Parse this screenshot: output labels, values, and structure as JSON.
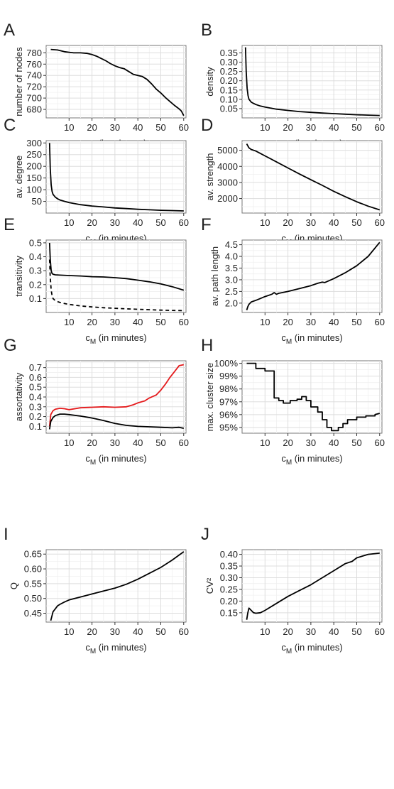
{
  "chart_data": [
    {
      "panel": "A",
      "type": "line",
      "xlabel_main": "c",
      "xlabel_sub": "M",
      "xlabel_rest": " (in minutes)",
      "ylabel": "number of nodes",
      "xlim": [
        0,
        61
      ],
      "ylim": [
        665,
        793
      ],
      "xticks": [
        10,
        20,
        30,
        40,
        50,
        60
      ],
      "yticks": [
        680,
        700,
        720,
        740,
        760,
        780
      ],
      "ytick_labels": [
        "680",
        "700",
        "720",
        "740",
        "760",
        "780"
      ],
      "series": [
        {
          "color": "#000000",
          "dash": "none",
          "x": [
            2,
            5,
            8,
            10,
            12,
            15,
            18,
            20,
            22,
            24,
            26,
            28,
            30,
            32,
            34,
            36,
            38,
            40,
            42,
            44,
            46,
            48,
            50,
            52,
            54,
            56,
            58,
            59,
            60
          ],
          "y": [
            786,
            785,
            782,
            781,
            780,
            780,
            779,
            777,
            774,
            770,
            766,
            761,
            757,
            754,
            752,
            747,
            742,
            740,
            738,
            733,
            725,
            716,
            709,
            701,
            694,
            687,
            681,
            677,
            669
          ]
        }
      ]
    },
    {
      "panel": "B",
      "type": "line",
      "xlabel_main": "c",
      "xlabel_sub": "M",
      "xlabel_rest": " (in minutes)",
      "ylabel": "density",
      "xlim": [
        0,
        61
      ],
      "ylim": [
        0,
        0.39
      ],
      "xticks": [
        10,
        20,
        30,
        40,
        50,
        60
      ],
      "yticks": [
        0.05,
        0.1,
        0.15,
        0.2,
        0.25,
        0.3,
        0.35
      ],
      "ytick_labels": [
        "0.05",
        "0.10",
        "0.15",
        "0.20",
        "0.25",
        "0.30",
        "0.35"
      ],
      "series": [
        {
          "color": "#000000",
          "dash": "none",
          "x": [
            1.5,
            1.8,
            2.2,
            2.6,
            3,
            4,
            5,
            6,
            8,
            10,
            15,
            20,
            25,
            30,
            35,
            40,
            45,
            50,
            55,
            60
          ],
          "y": [
            0.38,
            0.25,
            0.16,
            0.12,
            0.1,
            0.085,
            0.078,
            0.072,
            0.064,
            0.058,
            0.047,
            0.04,
            0.034,
            0.03,
            0.026,
            0.023,
            0.02,
            0.017,
            0.015,
            0.013
          ]
        }
      ]
    },
    {
      "panel": "C",
      "type": "line",
      "xlabel_main": "c",
      "xlabel_sub": "M",
      "xlabel_rest": " (in minutes)",
      "ylabel": "av. degree",
      "xlim": [
        0,
        61
      ],
      "ylim": [
        0,
        310
      ],
      "xticks": [
        10,
        20,
        30,
        40,
        50,
        60
      ],
      "yticks": [
        50,
        100,
        150,
        200,
        250,
        300
      ],
      "ytick_labels": [
        "50",
        "100",
        "150",
        "200",
        "250",
        "300"
      ],
      "series": [
        {
          "color": "#000000",
          "dash": "none",
          "x": [
            1.5,
            1.8,
            2.2,
            2.6,
            3,
            4,
            5,
            6,
            8,
            10,
            15,
            20,
            25,
            30,
            35,
            40,
            45,
            50,
            55,
            60
          ],
          "y": [
            300,
            190,
            120,
            92,
            80,
            68,
            61,
            56,
            50,
            45,
            36,
            30,
            26,
            22,
            19,
            16,
            14,
            12,
            10.5,
            9
          ]
        }
      ]
    },
    {
      "panel": "D",
      "type": "line",
      "xlabel_main": "c",
      "xlabel_sub": "M",
      "xlabel_rest": " (in minutes)",
      "ylabel": "av. strength",
      "xlim": [
        0,
        61
      ],
      "ylim": [
        1100,
        5600
      ],
      "xticks": [
        10,
        20,
        30,
        40,
        50,
        60
      ],
      "yticks": [
        2000,
        3000,
        4000,
        5000
      ],
      "ytick_labels": [
        "2000",
        "3000",
        "4000",
        "5000"
      ],
      "series": [
        {
          "color": "#000000",
          "dash": "none",
          "x": [
            2,
            3,
            4,
            6,
            8,
            10,
            15,
            20,
            25,
            30,
            35,
            40,
            45,
            50,
            55,
            60
          ],
          "y": [
            5400,
            5150,
            5050,
            4950,
            4800,
            4650,
            4280,
            3900,
            3530,
            3170,
            2820,
            2450,
            2120,
            1800,
            1530,
            1300
          ]
        }
      ]
    },
    {
      "panel": "E",
      "type": "line",
      "xlabel_main": "c",
      "xlabel_sub": "M",
      "xlabel_rest": " (in minutes)",
      "ylabel": "transitivity",
      "xlim": [
        0,
        61
      ],
      "ylim": [
        0.0,
        0.52
      ],
      "xticks": [
        10,
        20,
        30,
        40,
        50,
        60
      ],
      "yticks": [
        0.1,
        0.2,
        0.3,
        0.4,
        0.5
      ],
      "ytick_labels": [
        "0.1",
        "0.2",
        "0.3",
        "0.4",
        "0.5"
      ],
      "series": [
        {
          "color": "#000000",
          "dash": "none",
          "x": [
            1.5,
            1.8,
            2.2,
            2.6,
            3,
            4,
            6,
            10,
            15,
            20,
            25,
            30,
            35,
            40,
            45,
            50,
            55,
            60
          ],
          "y": [
            0.5,
            0.38,
            0.3,
            0.28,
            0.275,
            0.27,
            0.268,
            0.265,
            0.262,
            0.257,
            0.255,
            0.25,
            0.243,
            0.232,
            0.22,
            0.205,
            0.185,
            0.16
          ]
        },
        {
          "color": "#000000",
          "dash": "5,4",
          "x": [
            1.5,
            1.8,
            2.2,
            2.6,
            3,
            4,
            5,
            6,
            8,
            10,
            15,
            20,
            25,
            30,
            35,
            40,
            45,
            50,
            55,
            60
          ],
          "y": [
            0.38,
            0.25,
            0.16,
            0.12,
            0.1,
            0.085,
            0.078,
            0.072,
            0.064,
            0.058,
            0.047,
            0.04,
            0.034,
            0.03,
            0.026,
            0.023,
            0.02,
            0.017,
            0.015,
            0.013
          ]
        }
      ]
    },
    {
      "panel": "F",
      "type": "line",
      "xlabel_main": "c",
      "xlabel_sub": "M",
      "xlabel_rest": " (in minutes)",
      "ylabel": "av. path length",
      "xlim": [
        0,
        61
      ],
      "ylim": [
        1.6,
        4.7
      ],
      "xticks": [
        10,
        20,
        30,
        40,
        50,
        60
      ],
      "yticks": [
        2.0,
        2.5,
        3.0,
        3.5,
        4.0,
        4.5
      ],
      "ytick_labels": [
        "2.0",
        "2.5",
        "3.0",
        "3.5",
        "4.0",
        "4.5"
      ],
      "series": [
        {
          "color": "#000000",
          "dash": "none",
          "x": [
            2,
            2.5,
            3,
            4,
            6,
            8,
            10,
            13,
            14,
            15,
            16,
            20,
            25,
            30,
            33,
            35,
            36,
            40,
            45,
            50,
            55,
            60
          ],
          "y": [
            1.7,
            1.85,
            1.95,
            2.05,
            2.12,
            2.2,
            2.28,
            2.38,
            2.45,
            2.38,
            2.42,
            2.5,
            2.62,
            2.75,
            2.85,
            2.9,
            2.88,
            3.05,
            3.3,
            3.6,
            4.0,
            4.6
          ]
        }
      ]
    },
    {
      "panel": "G",
      "type": "line",
      "xlabel_main": "c",
      "xlabel_sub": "M",
      "xlabel_rest": " (in minutes)",
      "ylabel": "assortativity",
      "xlim": [
        0,
        61
      ],
      "ylim": [
        0.03,
        0.77
      ],
      "xticks": [
        10,
        20,
        30,
        40,
        50,
        60
      ],
      "yticks": [
        0.1,
        0.2,
        0.3,
        0.4,
        0.5,
        0.6,
        0.7
      ],
      "ytick_labels": [
        "0.1",
        "0.2",
        "0.3",
        "0.4",
        "0.5",
        "0.6",
        "0.7"
      ],
      "series": [
        {
          "color": "#e41a1c",
          "dash": "none",
          "x": [
            1.5,
            2,
            3,
            4,
            6,
            8,
            10,
            15,
            20,
            25,
            30,
            35,
            38,
            40,
            43,
            45,
            48,
            50,
            52,
            54,
            56,
            58,
            60
          ],
          "y": [
            0.1,
            0.22,
            0.26,
            0.275,
            0.285,
            0.28,
            0.27,
            0.29,
            0.295,
            0.3,
            0.295,
            0.3,
            0.32,
            0.34,
            0.36,
            0.39,
            0.42,
            0.47,
            0.53,
            0.6,
            0.66,
            0.72,
            0.73
          ]
        },
        {
          "color": "#000000",
          "dash": "none",
          "x": [
            1.5,
            2,
            3,
            4,
            6,
            8,
            10,
            15,
            20,
            25,
            30,
            35,
            40,
            45,
            50,
            55,
            58,
            60
          ],
          "y": [
            0.07,
            0.15,
            0.19,
            0.21,
            0.225,
            0.225,
            0.22,
            0.205,
            0.185,
            0.16,
            0.13,
            0.11,
            0.1,
            0.095,
            0.09,
            0.085,
            0.09,
            0.08
          ]
        }
      ]
    },
    {
      "panel": "H",
      "type": "line",
      "xlabel_main": "c",
      "xlabel_sub": "M",
      "xlabel_rest": " (in minutes)",
      "ylabel": "max. cluster size",
      "xlim": [
        0,
        61
      ],
      "ylim": [
        94.55,
        100.2
      ],
      "xticks": [
        10,
        20,
        30,
        40,
        50,
        60
      ],
      "yticks": [
        95,
        96,
        97,
        98,
        99,
        100
      ],
      "ytick_labels": [
        "95%",
        "96%",
        "97%",
        "98%",
        "99%",
        "100%"
      ],
      "series": [
        {
          "color": "#000000",
          "dash": "none",
          "x": [
            2,
            6,
            6,
            10,
            10,
            14,
            14,
            16,
            16,
            18,
            18,
            21,
            21,
            24,
            24,
            26,
            26,
            28,
            28,
            30,
            30,
            33,
            33,
            35,
            35,
            37,
            37,
            39,
            39,
            42,
            42,
            44,
            44,
            46,
            46,
            50,
            50,
            54,
            54,
            58,
            58,
            60
          ],
          "y": [
            100,
            100,
            99.6,
            99.6,
            99.4,
            99.4,
            97.3,
            97.3,
            97.1,
            97.1,
            96.9,
            96.9,
            97.1,
            97.1,
            97.2,
            97.2,
            97.4,
            97.4,
            97.1,
            97.1,
            96.6,
            96.6,
            96.2,
            96.2,
            95.6,
            95.6,
            95.0,
            95.0,
            94.75,
            94.75,
            95.0,
            95.0,
            95.3,
            95.3,
            95.6,
            95.6,
            95.8,
            95.8,
            95.9,
            95.9,
            96.0,
            96.1
          ]
        }
      ]
    },
    {
      "panel": "I",
      "type": "line",
      "xlabel_main": "c",
      "xlabel_sub": "M",
      "xlabel_rest": " (in minutes)",
      "ylabel": "Q",
      "xlim": [
        0,
        61
      ],
      "ylim": [
        0.42,
        0.665
      ],
      "xticks": [
        10,
        20,
        30,
        40,
        50,
        60
      ],
      "yticks": [
        0.45,
        0.5,
        0.55,
        0.6,
        0.65
      ],
      "ytick_labels": [
        "0.45",
        "0.50",
        "0.55",
        "0.60",
        "0.65"
      ],
      "series": [
        {
          "color": "#000000",
          "dash": "none",
          "x": [
            2,
            2.5,
            3,
            4,
            5,
            6,
            8,
            10,
            15,
            20,
            25,
            30,
            35,
            40,
            45,
            50,
            55,
            60
          ],
          "y": [
            0.425,
            0.44,
            0.455,
            0.465,
            0.475,
            0.48,
            0.488,
            0.495,
            0.505,
            0.515,
            0.525,
            0.535,
            0.548,
            0.565,
            0.585,
            0.605,
            0.63,
            0.658
          ]
        }
      ]
    },
    {
      "panel": "J",
      "type": "line",
      "xlabel_main": "c",
      "xlabel_sub": "M",
      "xlabel_rest": " (in minutes)",
      "ylabel": "CV²",
      "xlim": [
        0,
        61
      ],
      "ylim": [
        0.11,
        0.42
      ],
      "xticks": [
        10,
        20,
        30,
        40,
        50,
        60
      ],
      "yticks": [
        0.15,
        0.2,
        0.25,
        0.3,
        0.35,
        0.4
      ],
      "ytick_labels": [
        "0.15",
        "0.20",
        "0.25",
        "0.30",
        "0.35",
        "0.40"
      ],
      "series": [
        {
          "color": "#000000",
          "dash": "none",
          "x": [
            2,
            2.5,
            3,
            4,
            5,
            6,
            8,
            10,
            15,
            20,
            25,
            30,
            35,
            40,
            45,
            48,
            50,
            55,
            60
          ],
          "y": [
            0.12,
            0.15,
            0.17,
            0.16,
            0.15,
            0.148,
            0.15,
            0.16,
            0.19,
            0.22,
            0.245,
            0.27,
            0.3,
            0.33,
            0.36,
            0.37,
            0.385,
            0.4,
            0.405
          ]
        }
      ]
    }
  ]
}
